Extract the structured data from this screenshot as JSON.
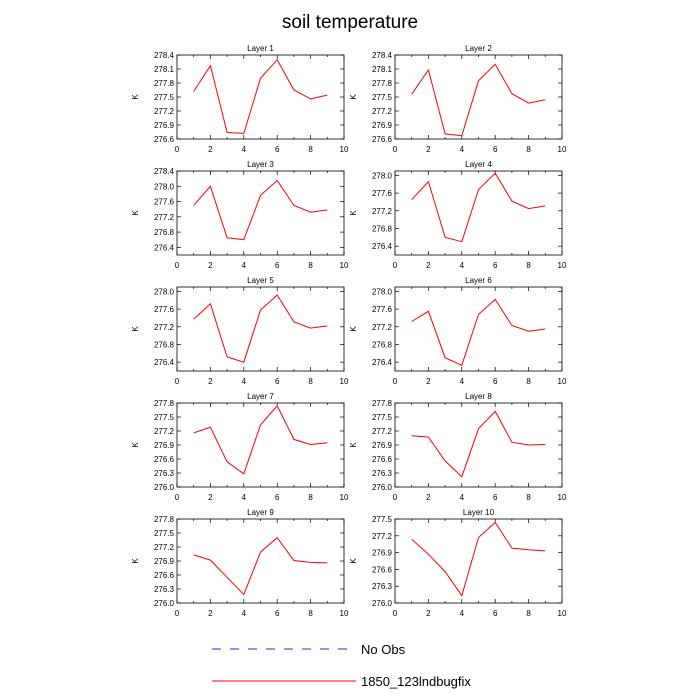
{
  "figure": {
    "title": "soil temperature",
    "legend": [
      {
        "name": "No Obs",
        "style": "dashed",
        "color": "#2a2acc"
      },
      {
        "name": "1850_123lndbugfix",
        "style": "solid",
        "color": "#ff0000"
      }
    ]
  },
  "chart_data": [
    {
      "type": "line",
      "title": "Layer 1",
      "ylabel": "K",
      "xlim": [
        0,
        10
      ],
      "ylim": [
        276.6,
        278.4
      ],
      "xticks": [
        0,
        2,
        4,
        6,
        8,
        10
      ],
      "yticks": [
        276.6,
        276.9,
        277.2,
        277.5,
        277.8,
        278.1,
        278.4
      ],
      "series": [
        {
          "name": "1850_123lndbugfix",
          "color": "#ff0000",
          "x": [
            1,
            2,
            3,
            4,
            5,
            6,
            7,
            8,
            9
          ],
          "y": [
            277.62,
            278.17,
            276.74,
            276.72,
            277.9,
            278.3,
            277.65,
            277.46,
            277.54
          ]
        }
      ]
    },
    {
      "type": "line",
      "title": "Layer 2",
      "ylabel": "K",
      "xlim": [
        0,
        10
      ],
      "ylim": [
        276.6,
        278.4
      ],
      "xticks": [
        0,
        2,
        4,
        6,
        8,
        10
      ],
      "yticks": [
        276.6,
        276.9,
        277.2,
        277.5,
        277.8,
        278.1,
        278.4
      ],
      "series": [
        {
          "name": "1850_123lndbugfix",
          "color": "#ff0000",
          "x": [
            1,
            2,
            3,
            4,
            5,
            6,
            7,
            8,
            9
          ],
          "y": [
            277.56,
            278.08,
            276.71,
            276.67,
            277.85,
            278.2,
            277.57,
            277.37,
            277.44
          ]
        }
      ]
    },
    {
      "type": "line",
      "title": "Layer 3",
      "ylabel": "K",
      "xlim": [
        0,
        10
      ],
      "ylim": [
        276.2,
        278.4
      ],
      "xticks": [
        0,
        2,
        4,
        6,
        8,
        10
      ],
      "yticks": [
        276.4,
        276.8,
        277.2,
        277.6,
        278.0,
        278.4
      ],
      "series": [
        {
          "name": "1850_123lndbugfix",
          "color": "#ff0000",
          "x": [
            1,
            2,
            3,
            4,
            5,
            6,
            7,
            8,
            9
          ],
          "y": [
            277.5,
            278.0,
            276.65,
            276.6,
            277.76,
            278.15,
            277.5,
            277.32,
            277.38
          ]
        }
      ]
    },
    {
      "type": "line",
      "title": "Layer 4",
      "ylabel": "K",
      "xlim": [
        0,
        10
      ],
      "ylim": [
        276.2,
        278.1
      ],
      "xticks": [
        0,
        2,
        4,
        6,
        8,
        10
      ],
      "yticks": [
        276.4,
        276.8,
        277.2,
        277.6,
        278.0
      ],
      "series": [
        {
          "name": "1850_123lndbugfix",
          "color": "#ff0000",
          "x": [
            1,
            2,
            3,
            4,
            5,
            6,
            7,
            8,
            9
          ],
          "y": [
            277.45,
            277.86,
            276.6,
            276.5,
            277.68,
            278.05,
            277.42,
            277.25,
            277.31
          ]
        }
      ]
    },
    {
      "type": "line",
      "title": "Layer 5",
      "ylabel": "K",
      "xlim": [
        0,
        10
      ],
      "ylim": [
        276.2,
        278.1
      ],
      "xticks": [
        0,
        2,
        4,
        6,
        8,
        10
      ],
      "yticks": [
        276.4,
        276.8,
        277.2,
        277.6,
        278.0
      ],
      "series": [
        {
          "name": "1850_123lndbugfix",
          "color": "#ff0000",
          "x": [
            1,
            2,
            3,
            4,
            5,
            6,
            7,
            8,
            9
          ],
          "y": [
            277.37,
            277.72,
            276.52,
            276.4,
            277.58,
            277.92,
            277.31,
            277.17,
            277.22
          ]
        }
      ]
    },
    {
      "type": "line",
      "title": "Layer 6",
      "ylabel": "K",
      "xlim": [
        0,
        10
      ],
      "ylim": [
        276.2,
        278.1
      ],
      "xticks": [
        0,
        2,
        4,
        6,
        8,
        10
      ],
      "yticks": [
        276.4,
        276.8,
        277.2,
        277.6,
        278.0
      ],
      "series": [
        {
          "name": "1850_123lndbugfix",
          "color": "#ff0000",
          "x": [
            1,
            2,
            3,
            4,
            5,
            6,
            7,
            8,
            9
          ],
          "y": [
            277.32,
            277.55,
            276.5,
            276.33,
            277.48,
            277.82,
            277.23,
            277.1,
            277.15
          ]
        }
      ]
    },
    {
      "type": "line",
      "title": "Layer 7",
      "ylabel": "K",
      "xlim": [
        0,
        10
      ],
      "ylim": [
        276.0,
        277.8
      ],
      "xticks": [
        0,
        2,
        4,
        6,
        8,
        10
      ],
      "yticks": [
        276.0,
        276.3,
        276.6,
        276.9,
        277.2,
        277.5,
        277.8
      ],
      "series": [
        {
          "name": "1850_123lndbugfix",
          "color": "#ff0000",
          "x": [
            1,
            2,
            3,
            4,
            5,
            6,
            7,
            8,
            9
          ],
          "y": [
            277.16,
            277.28,
            276.54,
            276.28,
            277.33,
            277.74,
            277.02,
            276.91,
            276.95
          ]
        }
      ]
    },
    {
      "type": "line",
      "title": "Layer 8",
      "ylabel": "K",
      "xlim": [
        0,
        10
      ],
      "ylim": [
        276.0,
        277.8
      ],
      "xticks": [
        0,
        2,
        4,
        6,
        8,
        10
      ],
      "yticks": [
        276.0,
        276.3,
        276.6,
        276.9,
        277.2,
        277.5,
        277.8
      ],
      "series": [
        {
          "name": "1850_123lndbugfix",
          "color": "#ff0000",
          "x": [
            1,
            2,
            3,
            4,
            5,
            6,
            7,
            8,
            9
          ],
          "y": [
            277.1,
            277.07,
            276.56,
            276.22,
            277.25,
            277.62,
            276.96,
            276.9,
            276.91
          ]
        }
      ]
    },
    {
      "type": "line",
      "title": "Layer 9",
      "ylabel": "K",
      "xlim": [
        0,
        10
      ],
      "ylim": [
        276.0,
        277.8
      ],
      "xticks": [
        0,
        2,
        4,
        6,
        8,
        10
      ],
      "yticks": [
        276.0,
        276.3,
        276.6,
        276.9,
        277.2,
        277.5,
        277.8
      ],
      "series": [
        {
          "name": "1850_123lndbugfix",
          "color": "#ff0000",
          "x": [
            1,
            2,
            3,
            4,
            5,
            6,
            7,
            8,
            9
          ],
          "y": [
            277.03,
            276.92,
            276.55,
            276.18,
            277.09,
            277.4,
            276.91,
            276.87,
            276.86
          ]
        }
      ]
    },
    {
      "type": "line",
      "title": "Layer 10",
      "ylabel": "K",
      "xlim": [
        0,
        10
      ],
      "ylim": [
        276.0,
        277.5
      ],
      "xticks": [
        0,
        2,
        4,
        6,
        8,
        10
      ],
      "yticks": [
        276.0,
        276.3,
        276.6,
        276.9,
        277.2,
        277.5
      ],
      "series": [
        {
          "name": "1850_123lndbugfix",
          "color": "#ff0000",
          "x": [
            1,
            2,
            3,
            4,
            5,
            6,
            7,
            8,
            9
          ],
          "y": [
            277.14,
            276.87,
            276.56,
            276.13,
            277.17,
            277.44,
            276.98,
            276.95,
            276.93
          ]
        }
      ]
    }
  ]
}
